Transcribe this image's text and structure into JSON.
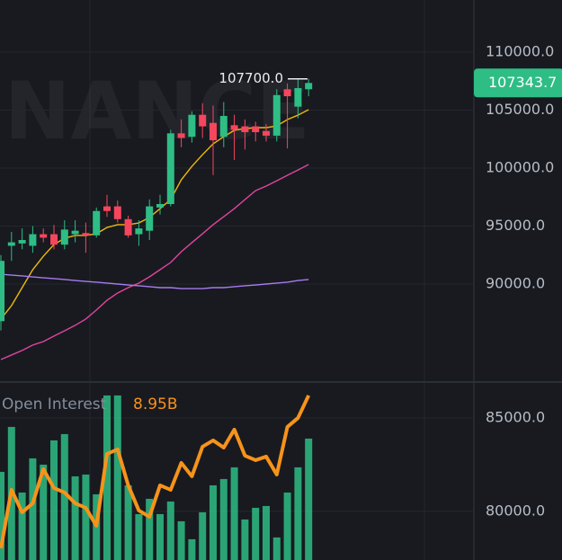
{
  "chart_data": [
    {
      "type": "candlestick",
      "watermark": "BINANCE",
      "up_color": "#2ebd85",
      "down_color": "#f6465d",
      "open": [
        86800,
        93300,
        93500,
        93300,
        94300,
        94300,
        93400,
        94300,
        94400,
        94200,
        96700,
        96700,
        95600,
        94300,
        94600,
        96600,
        96900,
        103000,
        102700,
        104600,
        103900,
        102700,
        103700,
        103600,
        103600,
        103200,
        102800,
        106800,
        105300,
        106800
      ],
      "high": [
        92500,
        94500,
        94800,
        95000,
        94800,
        95100,
        95500,
        95500,
        95300,
        96600,
        97700,
        97200,
        95900,
        95500,
        97300,
        97700,
        103300,
        104200,
        104900,
        105600,
        105400,
        105700,
        104600,
        104200,
        104000,
        103800,
        106800,
        107300,
        107700,
        107700
      ],
      "low": [
        86000,
        92000,
        93000,
        92700,
        93600,
        93000,
        93000,
        93600,
        92700,
        94000,
        95800,
        95300,
        94000,
        93300,
        93800,
        96000,
        96700,
        101800,
        102200,
        102600,
        99400,
        101800,
        100700,
        101600,
        102300,
        102300,
        102300,
        101700,
        104300,
        106200
      ],
      "close": [
        92000,
        93600,
        93800,
        94300,
        94000,
        93400,
        94700,
        94600,
        94200,
        96300,
        96300,
        95600,
        94200,
        94800,
        96700,
        96900,
        103000,
        102600,
        104600,
        103600,
        102400,
        104500,
        103300,
        103100,
        103100,
        102800,
        106300,
        106200,
        106900,
        107343.7
      ],
      "series": [
        {
          "color": "#f0b90b",
          "values": [
            86980,
            88140,
            89690,
            91240,
            92400,
            93410,
            93950,
            94190,
            94190,
            94340,
            94880,
            95120,
            95120,
            95270,
            95740,
            96510,
            97290,
            98990,
            100150,
            101160,
            102090,
            102710,
            103260,
            103410,
            103490,
            103490,
            103640,
            104190,
            104570,
            105040
          ]
        },
        {
          "color": "#e0459f",
          "values": [
            83490,
            83880,
            84270,
            84740,
            85040,
            85510,
            85970,
            86440,
            86980,
            87760,
            88600,
            89230,
            89690,
            90080,
            90620,
            91240,
            91860,
            92790,
            93570,
            94340,
            95120,
            95810,
            96510,
            97290,
            98060,
            98450,
            98910,
            99380,
            99840,
            100310
          ]
        },
        {
          "color": "#a77bf0",
          "values": [
            90850,
            90770,
            90700,
            90620,
            90540,
            90470,
            90390,
            90310,
            90230,
            90160,
            90080,
            90000,
            89920,
            89850,
            89770,
            89690,
            89690,
            89610,
            89610,
            89610,
            89690,
            89690,
            89770,
            89850,
            89920,
            90000,
            90080,
            90160,
            90310,
            90390
          ]
        }
      ],
      "ylim": [
        81550,
        114500
      ],
      "yticks": [
        {
          "value": 90000,
          "label": "90000.0"
        },
        {
          "value": 95000,
          "label": "95000.0"
        },
        {
          "value": 100000,
          "label": "100000.0"
        },
        {
          "value": 105000,
          "label": "105000.0"
        },
        {
          "value": 110000,
          "label": "110000.0"
        }
      ],
      "grid": true,
      "last_price": 107343.7,
      "high_annotation": {
        "value": 107700,
        "label": "107700.0"
      }
    },
    {
      "type": "bar_line",
      "title": "Open Interest",
      "current_value": {
        "value": 8950000000,
        "label": "8.95B"
      },
      "bar_color": "#2ebd85",
      "line_color": "#f7931a",
      "bars": [
        82115,
        84519,
        81009,
        82836,
        82500,
        83798,
        84135,
        81875,
        81971,
        80913,
        86202,
        86202,
        81394,
        79856,
        80673,
        79856,
        80529,
        79471,
        78510,
        79952,
        81394,
        81731,
        82356,
        79567,
        80192,
        80288,
        78606,
        81009,
        82356,
        83894
      ],
      "values": [
        78028,
        81154,
        79952,
        80432,
        82259,
        81250,
        81009,
        80432,
        80192,
        79230,
        83077,
        83317,
        81394,
        80048,
        79711,
        81394,
        81154,
        82596,
        81875,
        83461,
        83798,
        83413,
        84375,
        82981,
        82740,
        82933,
        81971,
        84519,
        85000,
        86202
      ],
      "ylim": [
        77400,
        86920
      ],
      "yticks": [
        {
          "value": 80000,
          "label": "80000.0"
        },
        {
          "value": 85000,
          "label": "85000.0"
        }
      ],
      "grid": true
    }
  ]
}
